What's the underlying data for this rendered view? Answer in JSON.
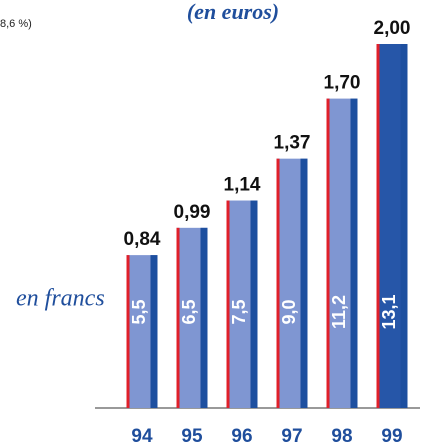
{
  "chart_data": {
    "type": "bar",
    "note_fragment": "8,6 %)",
    "subtitle": "(en euros)",
    "side_label": "en francs",
    "categories": [
      "94",
      "95",
      "96",
      "97",
      "98",
      "99"
    ],
    "values": [
      0.84,
      0.99,
      1.14,
      1.37,
      1.7,
      2.0
    ],
    "value_labels": [
      "0,84",
      "0,99",
      "1,14",
      "1,37",
      "1,70",
      "2,00"
    ],
    "inner_labels": [
      "5,5",
      "6,5",
      "7,5",
      "9,0",
      "11,2",
      "13,1"
    ],
    "colors": [
      "#7f96d2",
      "#7f96d2",
      "#7f96d2",
      "#7f96d2",
      "#7f96d2",
      "#2656a8"
    ],
    "edge_color": "#e0202a",
    "shade_color": "#1d4f9f"
  }
}
